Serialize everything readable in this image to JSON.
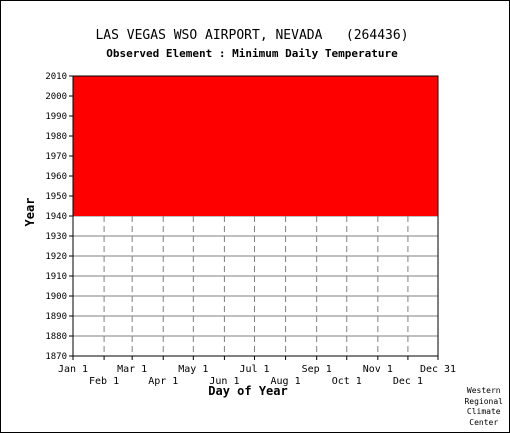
{
  "title": "LAS VEGAS WSO AIRPORT, NEVADA   (264436)",
  "subtitle": "Observed Element : Minimum Daily Temperature",
  "credit": [
    "Western",
    "Regional",
    "Climate",
    "Center"
  ],
  "chart_data": {
    "type": "area",
    "title": "LAS VEGAS WSO AIRPORT, NEVADA   (264436)",
    "subtitle": "Observed Element : Minimum Daily Temperature",
    "xlabel": "Day of Year",
    "ylabel": "Year",
    "xlim": [
      1,
      365
    ],
    "ylim": [
      1870,
      2010
    ],
    "yticks": [
      1870,
      1880,
      1890,
      1900,
      1910,
      1920,
      1930,
      1940,
      1950,
      1960,
      1970,
      1980,
      1990,
      2000,
      2010
    ],
    "xticks_upper": [
      {
        "label": "Jan 1",
        "day": 1
      },
      {
        "label": "Mar 1",
        "day": 60
      },
      {
        "label": "May 1",
        "day": 121
      },
      {
        "label": "Jul 1",
        "day": 182
      },
      {
        "label": "Sep 1",
        "day": 244
      },
      {
        "label": "Nov 1",
        "day": 305
      },
      {
        "label": "Dec 31",
        "day": 365
      }
    ],
    "xticks_lower": [
      {
        "label": "Feb 1",
        "day": 32
      },
      {
        "label": "Apr 1",
        "day": 91
      },
      {
        "label": "Jun 1",
        "day": 152
      },
      {
        "label": "Aug 1",
        "day": 213
      },
      {
        "label": "Oct 1",
        "day": 274
      },
      {
        "label": "Dec 1",
        "day": 335
      }
    ],
    "grid": true,
    "fill_color": "#ff0000",
    "series": [
      {
        "day_range": [
          1,
          365
        ],
        "year_range": [
          1940,
          2010
        ]
      }
    ]
  }
}
